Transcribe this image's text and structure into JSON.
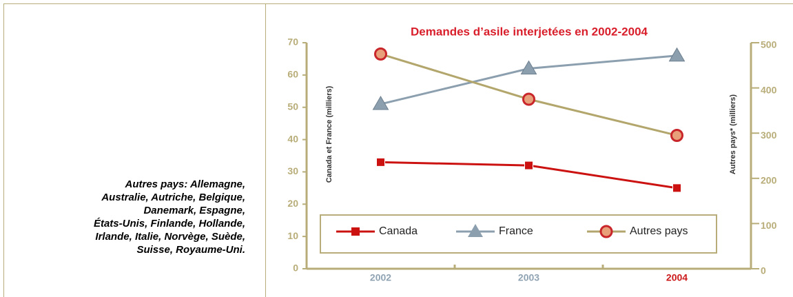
{
  "note": {
    "lines": [
      "Autres pays: Allemagne,",
      "Australie, Autriche, Belgique,",
      "Danemark, Espagne,",
      "États-Unis, Finlande, Hollande,",
      "Irlande, Italie, Norvège, Suède,",
      "Suisse, Royaume-Uni."
    ]
  },
  "chart_data": {
    "type": "line",
    "title": "Demandes d’asile interjetées en 2002-2004",
    "ylabel": "Canada et France (milliers)",
    "y2label": "Autres pays* (milliers)",
    "categories": [
      "2002",
      "2003",
      "2004"
    ],
    "xtick_colors": [
      "#8fa3b3",
      "#8fa3b3",
      "#cc1a1a"
    ],
    "series": [
      {
        "name": "Canada",
        "color": "#cc1111",
        "marker": "square",
        "values": [
          33,
          32,
          25
        ]
      },
      {
        "name": "France",
        "color": "#8b9faf",
        "marker": "triangle",
        "values": [
          51,
          62,
          66
        ]
      },
      {
        "name": "Autres pays",
        "color": "#b3a66c",
        "marker": "circle",
        "axis": "y2",
        "values": [
          475,
          375,
          295
        ]
      }
    ],
    "ylim": [
      0,
      70
    ],
    "yticks": [
      0,
      10,
      20,
      30,
      40,
      50,
      60,
      70
    ],
    "y2lim": [
      0,
      500
    ],
    "y2ticks": [
      0,
      100,
      200,
      300,
      400,
      500
    ],
    "legend": "bottom"
  }
}
